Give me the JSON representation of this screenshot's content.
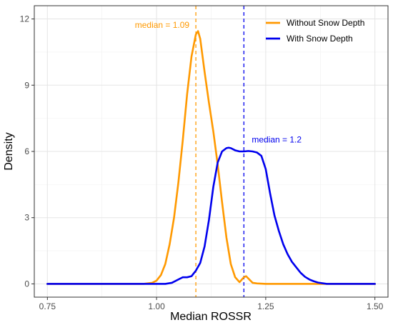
{
  "chart_data": {
    "type": "line",
    "xlabel": "Median ROSSR",
    "ylabel": "Density",
    "xlim": [
      0.72,
      1.53
    ],
    "ylim": [
      -0.6,
      12.6
    ],
    "x_ticks": [
      0.75,
      1.0,
      1.25,
      1.5
    ],
    "x_tick_labels": [
      "0.75",
      "1.00",
      "1.25",
      "1.50"
    ],
    "y_ticks": [
      0,
      3,
      6,
      9,
      12
    ],
    "y_tick_labels": [
      "0",
      "3",
      "6",
      "9",
      "12"
    ],
    "grid": true,
    "legend_position": "top-right",
    "series": [
      {
        "name": "Without Snow Depth",
        "color": "#FF9900",
        "x": [
          0.75,
          0.97,
          0.99,
          1.0,
          1.01,
          1.02,
          1.03,
          1.04,
          1.05,
          1.06,
          1.07,
          1.08,
          1.09,
          1.095,
          1.1,
          1.11,
          1.12,
          1.13,
          1.14,
          1.15,
          1.16,
          1.17,
          1.18,
          1.19,
          1.2,
          1.205,
          1.21,
          1.22,
          1.23,
          1.25,
          1.5
        ],
        "y": [
          0,
          0,
          0.05,
          0.15,
          0.4,
          0.9,
          1.8,
          3.0,
          4.6,
          6.5,
          8.6,
          10.3,
          11.3,
          11.45,
          11.1,
          9.6,
          8.2,
          6.9,
          5.4,
          3.7,
          2.1,
          0.9,
          0.3,
          0.08,
          0.3,
          0.35,
          0.25,
          0.05,
          0.02,
          0,
          0
        ]
      },
      {
        "name": "With Snow Depth",
        "color": "#0000EE",
        "x": [
          0.75,
          1.02,
          1.035,
          1.05,
          1.06,
          1.07,
          1.08,
          1.09,
          1.1,
          1.11,
          1.12,
          1.13,
          1.14,
          1.15,
          1.16,
          1.165,
          1.17,
          1.18,
          1.19,
          1.2,
          1.21,
          1.22,
          1.23,
          1.24,
          1.25,
          1.26,
          1.27,
          1.28,
          1.29,
          1.3,
          1.31,
          1.32,
          1.33,
          1.34,
          1.35,
          1.36,
          1.37,
          1.38,
          1.39,
          1.5
        ],
        "y": [
          0,
          0,
          0.05,
          0.2,
          0.3,
          0.3,
          0.35,
          0.6,
          0.95,
          1.7,
          2.9,
          4.4,
          5.5,
          6.0,
          6.15,
          6.17,
          6.15,
          6.05,
          6.0,
          6.0,
          6.02,
          6.0,
          5.95,
          5.8,
          5.2,
          4.1,
          3.1,
          2.4,
          1.8,
          1.35,
          1.0,
          0.75,
          0.5,
          0.32,
          0.2,
          0.12,
          0.06,
          0.03,
          0,
          0
        ]
      }
    ],
    "medians": [
      {
        "value": 1.09,
        "label": "median = 1.09",
        "color": "#FF9900"
      },
      {
        "value": 1.2,
        "label": "median = 1.2",
        "color": "#0000EE"
      }
    ]
  }
}
